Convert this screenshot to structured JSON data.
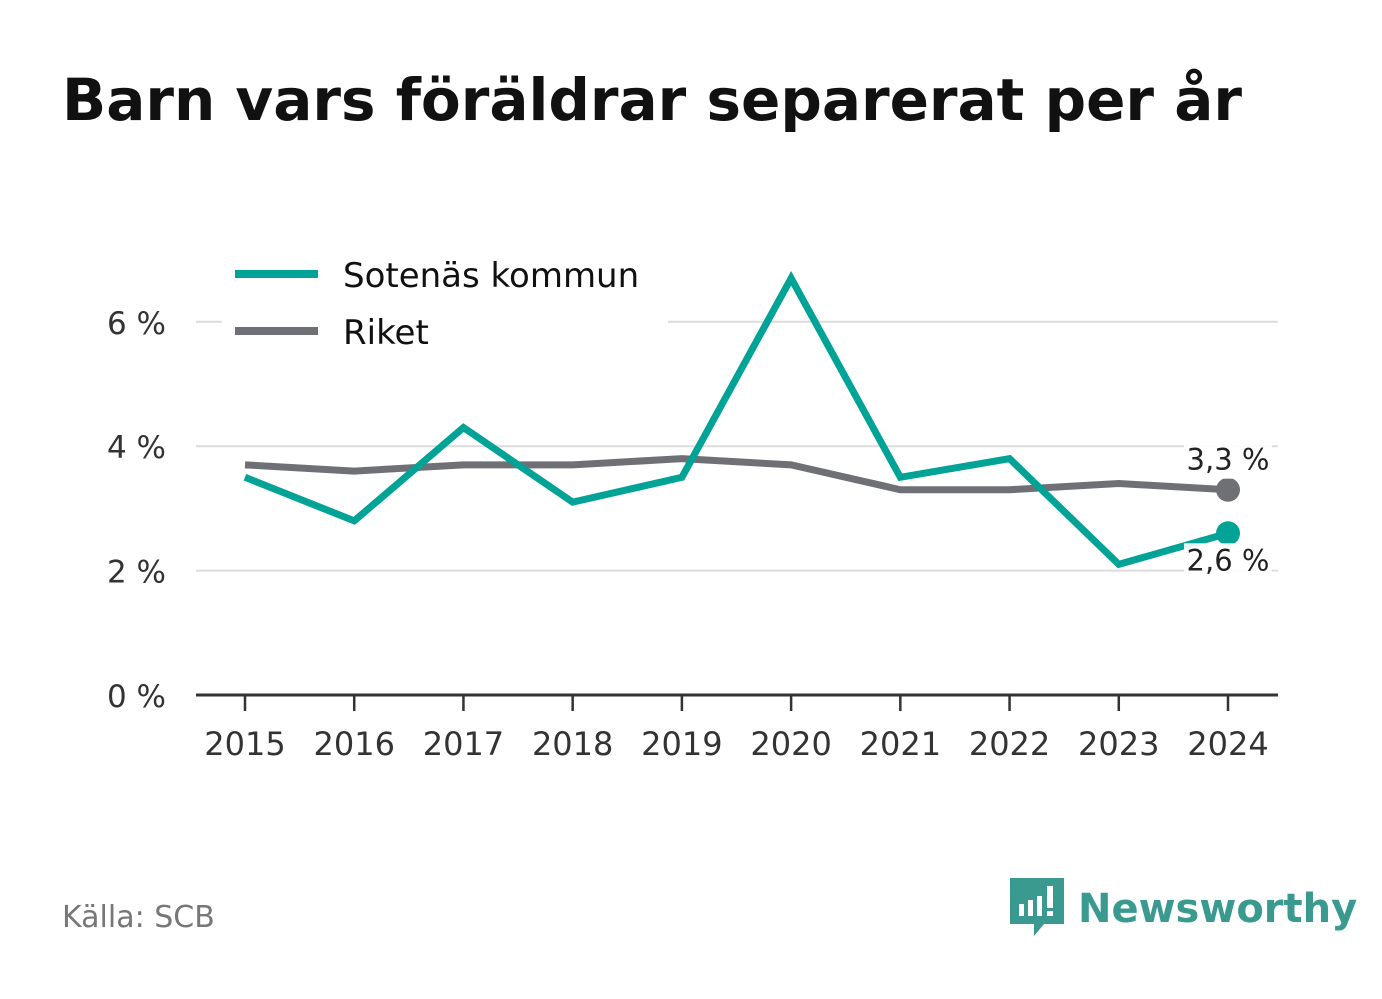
{
  "title": "Barn vars föräldrar separerat per år",
  "source": "Källa: SCB",
  "brand": {
    "name": "Newsworthy",
    "icon": "newsworthy-logo-icon",
    "color": "#3a9a8f"
  },
  "chart_data": {
    "type": "line",
    "title": "Barn vars föräldrar separerat per år",
    "x": [
      "2015",
      "2016",
      "2017",
      "2018",
      "2019",
      "2020",
      "2021",
      "2022",
      "2023",
      "2024"
    ],
    "y_ticks": [
      0,
      2,
      4,
      6
    ],
    "y_tick_labels": [
      "0 %",
      "2 %",
      "4 %",
      "6 %"
    ],
    "ylim": [
      0,
      6.9
    ],
    "grid": true,
    "legend_position": "top-left",
    "series": [
      {
        "name": "Sotenäs kommun",
        "color": "#00a396",
        "values": [
          3.5,
          2.8,
          4.3,
          3.1,
          3.5,
          6.7,
          3.5,
          3.8,
          2.1,
          2.6
        ],
        "end_label": "2,6 %"
      },
      {
        "name": "Riket",
        "color": "#6f6f76",
        "values": [
          3.7,
          3.6,
          3.7,
          3.7,
          3.8,
          3.7,
          3.3,
          3.3,
          3.4,
          3.3
        ],
        "end_label": "3,3 %"
      }
    ]
  }
}
